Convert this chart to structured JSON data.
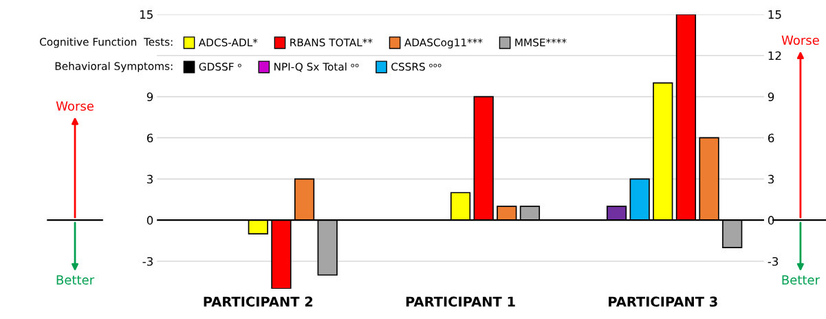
{
  "chart_data": {
    "type": "bar",
    "categories": [
      "PARTICIPANT 2",
      "PARTICIPANT 1",
      "PARTICIPANT 3"
    ],
    "series": [
      {
        "name": "GDSSF ᵒ",
        "color": "#000000",
        "values": [
          0,
          0,
          0
        ]
      },
      {
        "name": "NPI-Q Sx Total ᵒᵒ",
        "color": "#cc00cc",
        "colors": [
          "#cc00cc",
          "#cc00cc",
          "#7030a0"
        ],
        "values": [
          0,
          0,
          1
        ]
      },
      {
        "name": "CSSRS ᵒᵒᵒ",
        "color": "#00b0f0",
        "values": [
          0,
          0,
          3
        ]
      },
      {
        "name": "ADCS-ADL*",
        "color": "#ffff00",
        "values": [
          -1,
          2,
          10
        ]
      },
      {
        "name": "RBANS TOTAL**",
        "color": "#ff0000",
        "values": [
          -5,
          9,
          15
        ]
      },
      {
        "name": "ADASCog11***",
        "color": "#ed7d31",
        "values": [
          3,
          1,
          6
        ]
      },
      {
        "name": "MMSE****",
        "color": "#a5a5a5",
        "values": [
          -4,
          1,
          -2
        ]
      }
    ],
    "ylim": [
      -5,
      15
    ],
    "yticks": [
      -3,
      0,
      3,
      6,
      9,
      {
        "value": 12,
        "label": null
      },
      15
    ],
    "y2lim": [
      -5,
      15
    ],
    "y2ticks": [
      -3,
      0,
      3,
      6,
      9,
      12,
      15
    ],
    "grid": "y",
    "legend": "top",
    "ref_lines": [
      {
        "axis": "y",
        "value": 0,
        "color": "#000000"
      }
    ],
    "annotations": [
      "Cognitive Function  Tests:",
      "Behavioral Symptoms:",
      "Worse",
      "Better",
      "Worse",
      "Better"
    ]
  }
}
